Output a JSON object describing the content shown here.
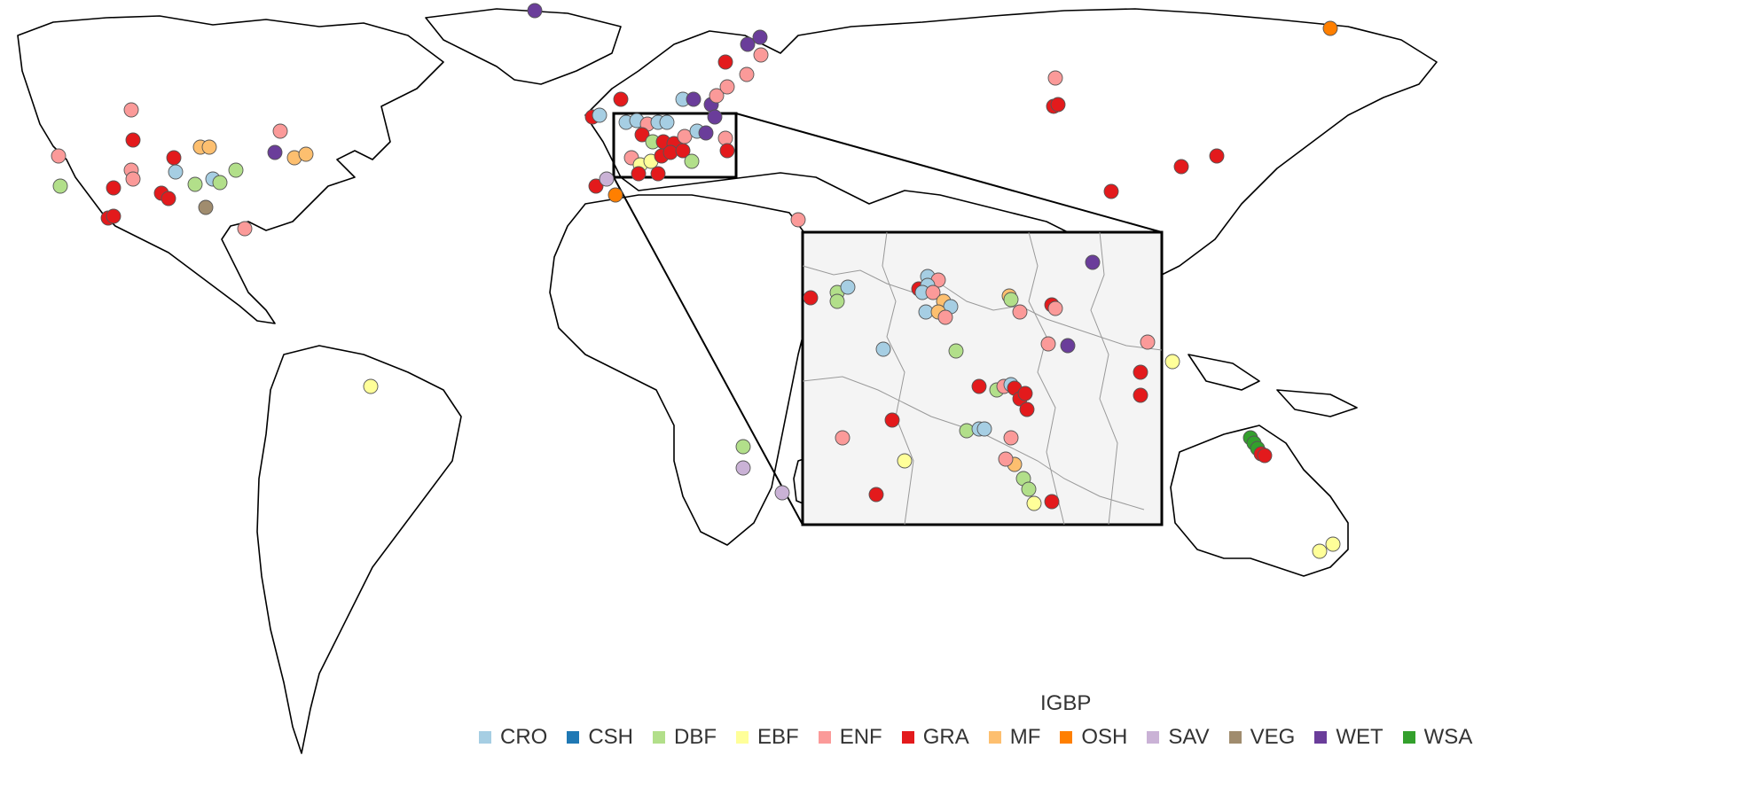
{
  "legend": {
    "title": "IGBP",
    "items": [
      {
        "code": "CRO",
        "color": "#a6cee3"
      },
      {
        "code": "CSH",
        "color": "#1f78b4"
      },
      {
        "code": "DBF",
        "color": "#b2df8a"
      },
      {
        "code": "EBF",
        "color": "#ffff99"
      },
      {
        "code": "ENF",
        "color": "#fb9a99"
      },
      {
        "code": "GRA",
        "color": "#e31a1c"
      },
      {
        "code": "MF",
        "color": "#fdbf6f"
      },
      {
        "code": "OSH",
        "color": "#ff7f00"
      },
      {
        "code": "SAV",
        "color": "#cab2d6"
      },
      {
        "code": "VEG",
        "color": "#a08c6e"
      },
      {
        "code": "WET",
        "color": "#6a3d9a"
      },
      {
        "code": "WSA",
        "color": "#33a02c"
      }
    ]
  },
  "map": {
    "inset_region": "Western and Central Europe",
    "inset_background": "#f4f4f4"
  }
}
